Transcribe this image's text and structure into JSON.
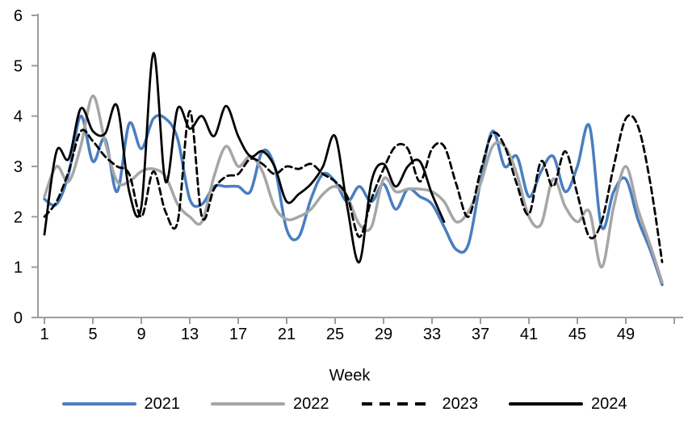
{
  "chart_data": {
    "type": "line",
    "title": "",
    "xlabel": "Week",
    "ylabel": "",
    "x_unit": "week",
    "x_range": [
      1,
      52
    ],
    "ylim": [
      0,
      6
    ],
    "y_ticks": [
      0,
      1,
      2,
      3,
      4,
      5,
      6
    ],
    "x_ticks": [
      1,
      5,
      9,
      13,
      17,
      21,
      25,
      29,
      33,
      37,
      41,
      45,
      49
    ],
    "x_axis_extra_unlabeled_ticks": [
      53
    ],
    "grid": false,
    "legend_position": "bottom",
    "axis_color": "#9d9d9d",
    "text_color": "#000000",
    "series": [
      {
        "name": "2021",
        "color": "#4a7ebf",
        "line_style": "solid",
        "stroke_width": 3.5,
        "values": [
          2.35,
          2.25,
          2.85,
          4.0,
          3.1,
          3.55,
          2.5,
          3.85,
          3.35,
          3.95,
          3.95,
          3.55,
          2.35,
          2.25,
          2.6,
          2.6,
          2.6,
          2.5,
          3.3,
          3.0,
          1.75,
          1.6,
          2.35,
          2.85,
          2.7,
          2.3,
          2.6,
          2.3,
          2.65,
          2.15,
          2.55,
          2.4,
          2.25,
          1.8,
          1.35,
          1.45,
          2.7,
          3.7,
          3.0,
          3.2,
          2.4,
          2.9,
          3.2,
          2.5,
          3.0,
          3.8,
          1.8,
          2.5,
          2.75,
          1.95,
          1.35,
          0.65
        ]
      },
      {
        "name": "2022",
        "color": "#a6a6a6",
        "line_style": "solid",
        "stroke_width": 3.5,
        "values": [
          2.4,
          3.0,
          2.7,
          3.4,
          4.4,
          3.5,
          2.7,
          2.7,
          2.9,
          2.95,
          2.8,
          2.25,
          2.0,
          1.9,
          2.8,
          3.4,
          3.0,
          3.2,
          2.9,
          2.2,
          1.95,
          2.0,
          2.15,
          2.45,
          2.6,
          2.4,
          1.85,
          1.8,
          2.75,
          2.5,
          2.55,
          2.55,
          2.5,
          2.3,
          1.9,
          2.1,
          2.65,
          3.4,
          3.4,
          2.85,
          2.0,
          1.85,
          2.75,
          2.2,
          1.9,
          2.1,
          1.0,
          2.2,
          3.0,
          2.15,
          1.45,
          0.7
        ]
      },
      {
        "name": "2023",
        "color": "#000000",
        "line_style": "dashed",
        "stroke_width": 2.8,
        "values": [
          2.0,
          2.3,
          2.9,
          3.7,
          3.5,
          3.2,
          3.0,
          2.85,
          2.0,
          2.9,
          2.1,
          1.9,
          4.1,
          2.0,
          2.55,
          2.8,
          2.85,
          3.15,
          3.05,
          2.85,
          3.0,
          2.95,
          3.05,
          2.85,
          2.7,
          2.4,
          1.6,
          2.35,
          2.95,
          3.4,
          3.35,
          2.7,
          3.35,
          3.4,
          2.65,
          2.0,
          2.9,
          3.65,
          3.4,
          2.65,
          2.05,
          3.1,
          2.6,
          3.3,
          2.45,
          1.6,
          1.9,
          3.0,
          3.95,
          3.8,
          2.7,
          1.1
        ]
      },
      {
        "name": "2024",
        "color": "#000000",
        "line_style": "solid",
        "stroke_width": 2.8,
        "values": [
          1.65,
          3.3,
          3.15,
          4.15,
          3.7,
          3.65,
          4.2,
          2.5,
          2.2,
          5.25,
          2.7,
          4.15,
          3.75,
          4.0,
          3.6,
          4.2,
          3.6,
          3.2,
          3.3,
          3.0,
          2.3,
          2.45,
          2.65,
          3.0,
          3.6,
          2.2,
          1.1,
          2.7,
          3.05,
          2.6,
          3.0,
          3.1,
          2.45,
          1.9
        ]
      }
    ]
  }
}
